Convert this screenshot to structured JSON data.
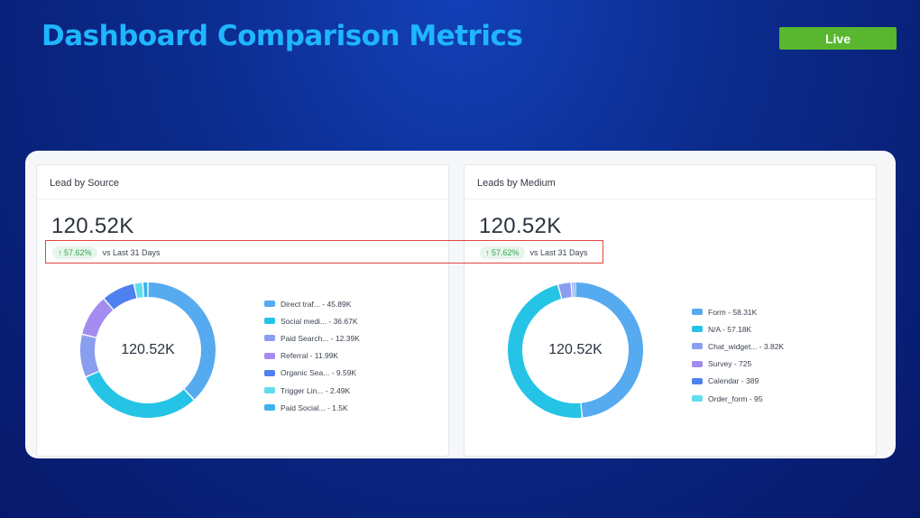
{
  "page": {
    "title": "Dashboard Comparison Metrics",
    "status_badge": "Live"
  },
  "colors": {
    "title": "#1fb6ff",
    "badge": "#58b72e",
    "highlight": "#e0453f",
    "trend_up": "#37a653"
  },
  "cards": [
    {
      "title": "Lead by Source",
      "total": "120.52K",
      "change": "↑ 57.62%",
      "comparison": "vs Last 31 Days",
      "center_label": "120.52K",
      "chart_data": {
        "type": "pie",
        "series": [
          {
            "label": "Direct traf...",
            "value": 45890,
            "display": "45.89K",
            "color": "#56aaf0"
          },
          {
            "label": "Social medi...",
            "value": 36670,
            "display": "36.67K",
            "color": "#25c4e6"
          },
          {
            "label": "Paid Search...",
            "value": 12390,
            "display": "12.39K",
            "color": "#8a9ef0"
          },
          {
            "label": "Referral",
            "value": 11990,
            "display": "11.99K",
            "color": "#a48bf0"
          },
          {
            "label": "Organic Sea...",
            "value": 9590,
            "display": "9.59K",
            "color": "#4f80ef"
          },
          {
            "label": "Trigger Lin...",
            "value": 2490,
            "display": "2.49K",
            "color": "#62dcef"
          },
          {
            "label": "Paid Social...",
            "value": 1500,
            "display": "1.5K",
            "color": "#3ab2ee"
          }
        ]
      }
    },
    {
      "title": "Leads by Medium",
      "total": "120.52K",
      "change": "↑ 57.62%",
      "comparison": "vs Last 31 Days",
      "center_label": "120.52K",
      "chart_data": {
        "type": "pie",
        "series": [
          {
            "label": "Form",
            "value": 58310,
            "display": "58.31K",
            "color": "#56aaf0"
          },
          {
            "label": "N/A",
            "value": 57180,
            "display": "57.18K",
            "color": "#25c4e6"
          },
          {
            "label": "Chat_widget...",
            "value": 3820,
            "display": "3.82K",
            "color": "#8a9ef0"
          },
          {
            "label": "Survey",
            "value": 725,
            "display": "725",
            "color": "#a48bf0"
          },
          {
            "label": "Calendar",
            "value": 389,
            "display": "389",
            "color": "#4f80ef"
          },
          {
            "label": "Order_form",
            "value": 95,
            "display": "95",
            "color": "#62dcef"
          }
        ]
      }
    }
  ]
}
